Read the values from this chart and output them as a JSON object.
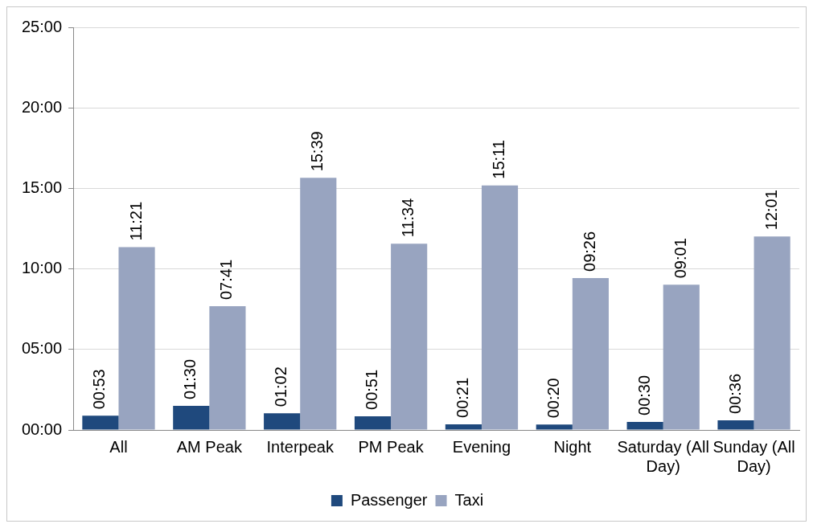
{
  "chart_data": {
    "type": "bar",
    "categories": [
      "All",
      "AM Peak",
      "Interpeak",
      "PM Peak",
      "Evening",
      "Night",
      "Saturday (All Day)",
      "Sunday (All Day)"
    ],
    "series": [
      {
        "name": "Passenger",
        "color": "#1f497d",
        "values": [
          0.883,
          1.5,
          1.033,
          0.85,
          0.35,
          0.333,
          0.5,
          0.6
        ],
        "value_labels": [
          "00:53",
          "01:30",
          "01:02",
          "00:51",
          "00:21",
          "00:20",
          "00:30",
          "00:36"
        ]
      },
      {
        "name": "Taxi",
        "color": "#98a4c0",
        "values": [
          11.35,
          7.683,
          15.65,
          11.567,
          15.183,
          9.433,
          9.017,
          12.017
        ],
        "value_labels": [
          "11:21",
          "07:41",
          "15:39",
          "11:34",
          "15:11",
          "09:26",
          "09:01",
          "12:01"
        ]
      }
    ],
    "ylim": [
      0,
      25
    ],
    "yticks": [
      {
        "value": 0,
        "label": "00:00"
      },
      {
        "value": 5,
        "label": "05:00"
      },
      {
        "value": 10,
        "label": "10:00"
      },
      {
        "value": 15,
        "label": "15:00"
      },
      {
        "value": 20,
        "label": "20:00"
      },
      {
        "value": 25,
        "label": "25:00"
      }
    ],
    "grid": "y",
    "legend": "bottom"
  }
}
